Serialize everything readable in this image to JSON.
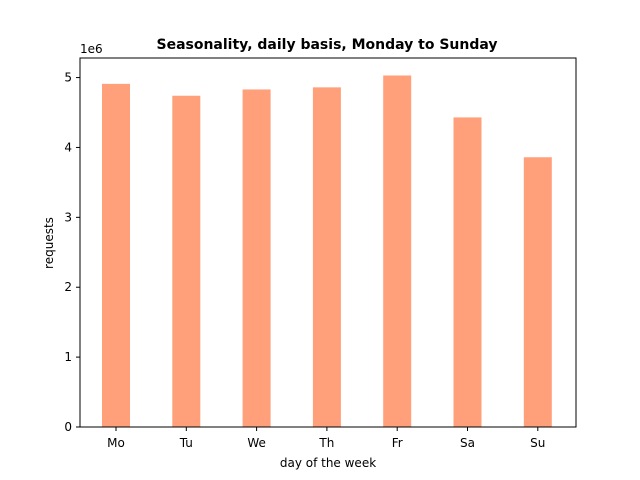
{
  "chart_data": {
    "type": "bar",
    "title": "Seasonality, daily basis, Monday to Sunday",
    "xlabel": "day of the week",
    "ylabel": "requests",
    "y_offset_label": "1e6",
    "categories": [
      "Mo",
      "Tu",
      "We",
      "Th",
      "Fr",
      "Sa",
      "Su"
    ],
    "values": [
      4910000,
      4740000,
      4830000,
      4860000,
      5030000,
      4430000,
      3860000
    ],
    "ylim": [
      0,
      5280000
    ],
    "yticks": [
      0,
      1000000,
      2000000,
      3000000,
      4000000,
      5000000
    ],
    "ytick_labels": [
      "0",
      "1",
      "2",
      "3",
      "4",
      "5"
    ],
    "bar_color": "#ffa07a",
    "grid": false,
    "legend": "none"
  }
}
